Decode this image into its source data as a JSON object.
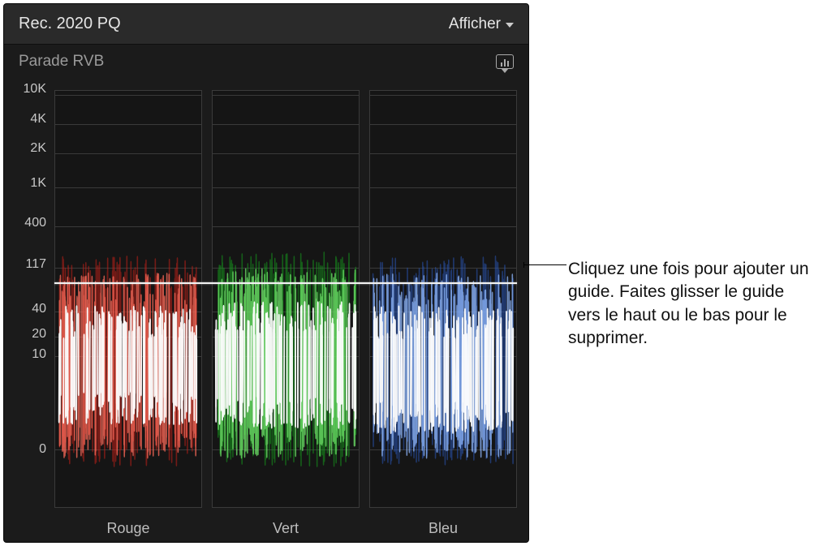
{
  "header": {
    "title": "Rec. 2020 PQ",
    "menu_label": "Afficher"
  },
  "scope": {
    "subtitle": "Parade RVB",
    "settings_icon_name": "scope-settings-icon"
  },
  "axis": {
    "ticks": [
      {
        "label": "10K",
        "pos_pct": 1.0
      },
      {
        "label": "4K",
        "pos_pct": 8.0
      },
      {
        "label": "2K",
        "pos_pct": 15.0
      },
      {
        "label": "1K",
        "pos_pct": 23.2
      },
      {
        "label": "400",
        "pos_pct": 32.6
      },
      {
        "label": "117",
        "pos_pct": 42.4
      },
      {
        "label": "40",
        "pos_pct": 53.0
      },
      {
        "label": "20",
        "pos_pct": 59.0
      },
      {
        "label": "10",
        "pos_pct": 63.7
      },
      {
        "label": "0",
        "pos_pct": 86.2
      }
    ],
    "gridlines_pct": [
      1.0,
      8.0,
      15.0,
      23.2,
      32.6,
      42.4,
      53.0,
      59.0,
      63.7,
      86.2
    ]
  },
  "guide": {
    "value_label": "117",
    "pos_pct": 42.4,
    "color": "#f2f2f2"
  },
  "channels": [
    {
      "label": "Rouge",
      "core_color": "#ffffff",
      "mid_color": "#ff6b5a",
      "outer_color": "#c22018",
      "top_pct": 44,
      "bottom_pct": 86,
      "core_top_pct": 56,
      "core_bottom_pct": 76
    },
    {
      "label": "Vert",
      "core_color": "#ffffff",
      "mid_color": "#6fe86a",
      "outer_color": "#169b1d",
      "top_pct": 43,
      "bottom_pct": 86,
      "core_top_pct": 55,
      "core_bottom_pct": 77
    },
    {
      "label": "Bleu",
      "core_color": "#ffffff",
      "mid_color": "#8fb8ff",
      "outer_color": "#2a56b5",
      "top_pct": 44,
      "bottom_pct": 86,
      "core_top_pct": 56,
      "core_bottom_pct": 78
    }
  ],
  "callout": {
    "text": "Cliquez une fois pour ajouter un guide. Faites glisser le guide vers le haut ou le bas pour le supprimer."
  },
  "colors": {
    "panel_bg": "#1b1b1b",
    "header_bg": "#2a2a2a",
    "grid": "#3a3a3a",
    "chan_bg": "#151515",
    "text": "#e5e5e5",
    "muted_text": "#9a9a9a",
    "label_text": "#bdbdbd"
  }
}
